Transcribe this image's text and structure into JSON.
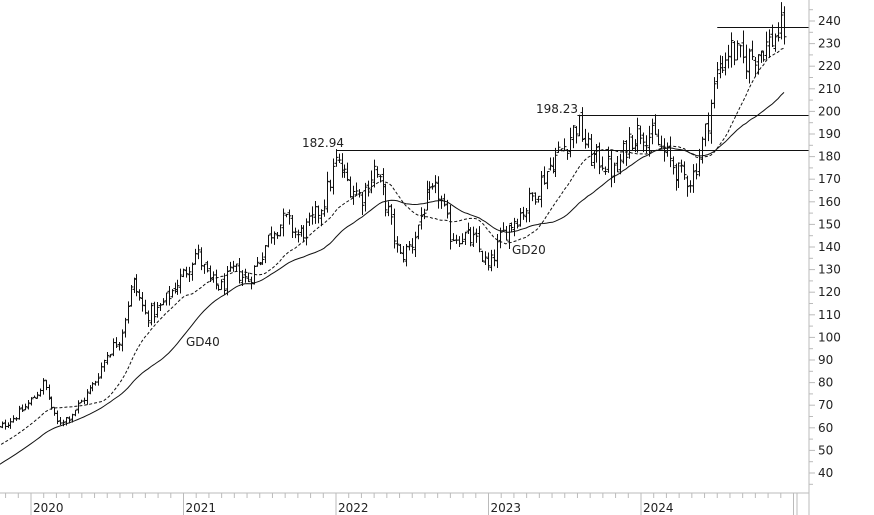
{
  "chart_data": {
    "type": "ohlc",
    "title": "",
    "xlabel": "",
    "ylabel": "",
    "ylim": [
      30,
      245
    ],
    "y_ticks": [
      40,
      50,
      60,
      70,
      80,
      90,
      100,
      110,
      120,
      130,
      140,
      150,
      160,
      170,
      180,
      190,
      200,
      210,
      220,
      230,
      240
    ],
    "x_tick_labels": [
      "2020",
      "2021",
      "2022",
      "2023",
      "2024"
    ],
    "grid": false,
    "frequency": "weekly bars",
    "monthly_close_approx": [
      [
        "2019-10",
        58
      ],
      [
        "2019-11",
        62
      ],
      [
        "2019-12",
        66
      ],
      [
        "2020-01",
        72
      ],
      [
        "2020-02",
        80
      ],
      [
        "2020-03",
        62
      ],
      [
        "2020-04",
        65
      ],
      [
        "2020-05",
        72
      ],
      [
        "2020-06",
        80
      ],
      [
        "2020-07",
        93
      ],
      [
        "2020-08",
        100
      ],
      [
        "2020-09",
        125
      ],
      [
        "2020-10",
        110
      ],
      [
        "2020-11",
        112
      ],
      [
        "2020-12",
        120
      ],
      [
        "2021-01",
        128
      ],
      [
        "2021-02",
        138
      ],
      [
        "2021-03",
        125
      ],
      [
        "2021-04",
        122
      ],
      [
        "2021-05",
        130
      ],
      [
        "2021-06",
        125
      ],
      [
        "2021-07",
        135
      ],
      [
        "2021-08",
        148
      ],
      [
        "2021-09",
        152
      ],
      [
        "2021-10",
        145
      ],
      [
        "2021-11",
        150
      ],
      [
        "2021-12",
        160
      ],
      [
        "2022-01",
        178
      ],
      [
        "2022-02",
        168
      ],
      [
        "2022-03",
        162
      ],
      [
        "2022-04",
        175
      ],
      [
        "2022-05",
        158
      ],
      [
        "2022-06",
        135
      ],
      [
        "2022-07",
        142
      ],
      [
        "2022-08",
        160
      ],
      [
        "2022-09",
        165
      ],
      [
        "2022-10",
        145
      ],
      [
        "2022-11",
        145
      ],
      [
        "2022-12",
        142
      ],
      [
        "2023-01",
        130
      ],
      [
        "2023-02",
        145
      ],
      [
        "2023-03",
        152
      ],
      [
        "2023-04",
        158
      ],
      [
        "2023-05",
        168
      ],
      [
        "2023-06",
        178
      ],
      [
        "2023-07",
        185
      ],
      [
        "2023-08",
        195
      ],
      [
        "2023-09",
        180
      ],
      [
        "2023-10",
        178
      ],
      [
        "2023-11",
        172
      ],
      [
        "2023-12",
        188
      ],
      [
        "2024-01",
        192
      ],
      [
        "2024-02",
        188
      ],
      [
        "2024-03",
        180
      ],
      [
        "2024-04",
        172
      ],
      [
        "2024-05",
        170
      ],
      [
        "2024-06",
        190
      ],
      [
        "2024-07",
        218
      ],
      [
        "2024-08",
        228
      ],
      [
        "2024-09",
        222
      ],
      [
        "2024-10",
        226
      ],
      [
        "2024-11",
        230
      ],
      [
        "2024-12",
        236
      ]
    ],
    "moving_averages": [
      {
        "name": "GD20",
        "period": 20,
        "style": "dashed"
      },
      {
        "name": "GD40",
        "period": 40,
        "style": "solid"
      }
    ],
    "horizontal_levels": [
      {
        "label": "182.94",
        "value": 182.94,
        "from": "2022-01"
      },
      {
        "label": "198.23",
        "value": 198.23,
        "from": "2023-08"
      },
      {
        "label": "",
        "value": 237.5,
        "from": "2024-07"
      }
    ],
    "colors": {
      "bars": "#111111",
      "axis": "#bbbbbb",
      "text": "#222222"
    }
  }
}
